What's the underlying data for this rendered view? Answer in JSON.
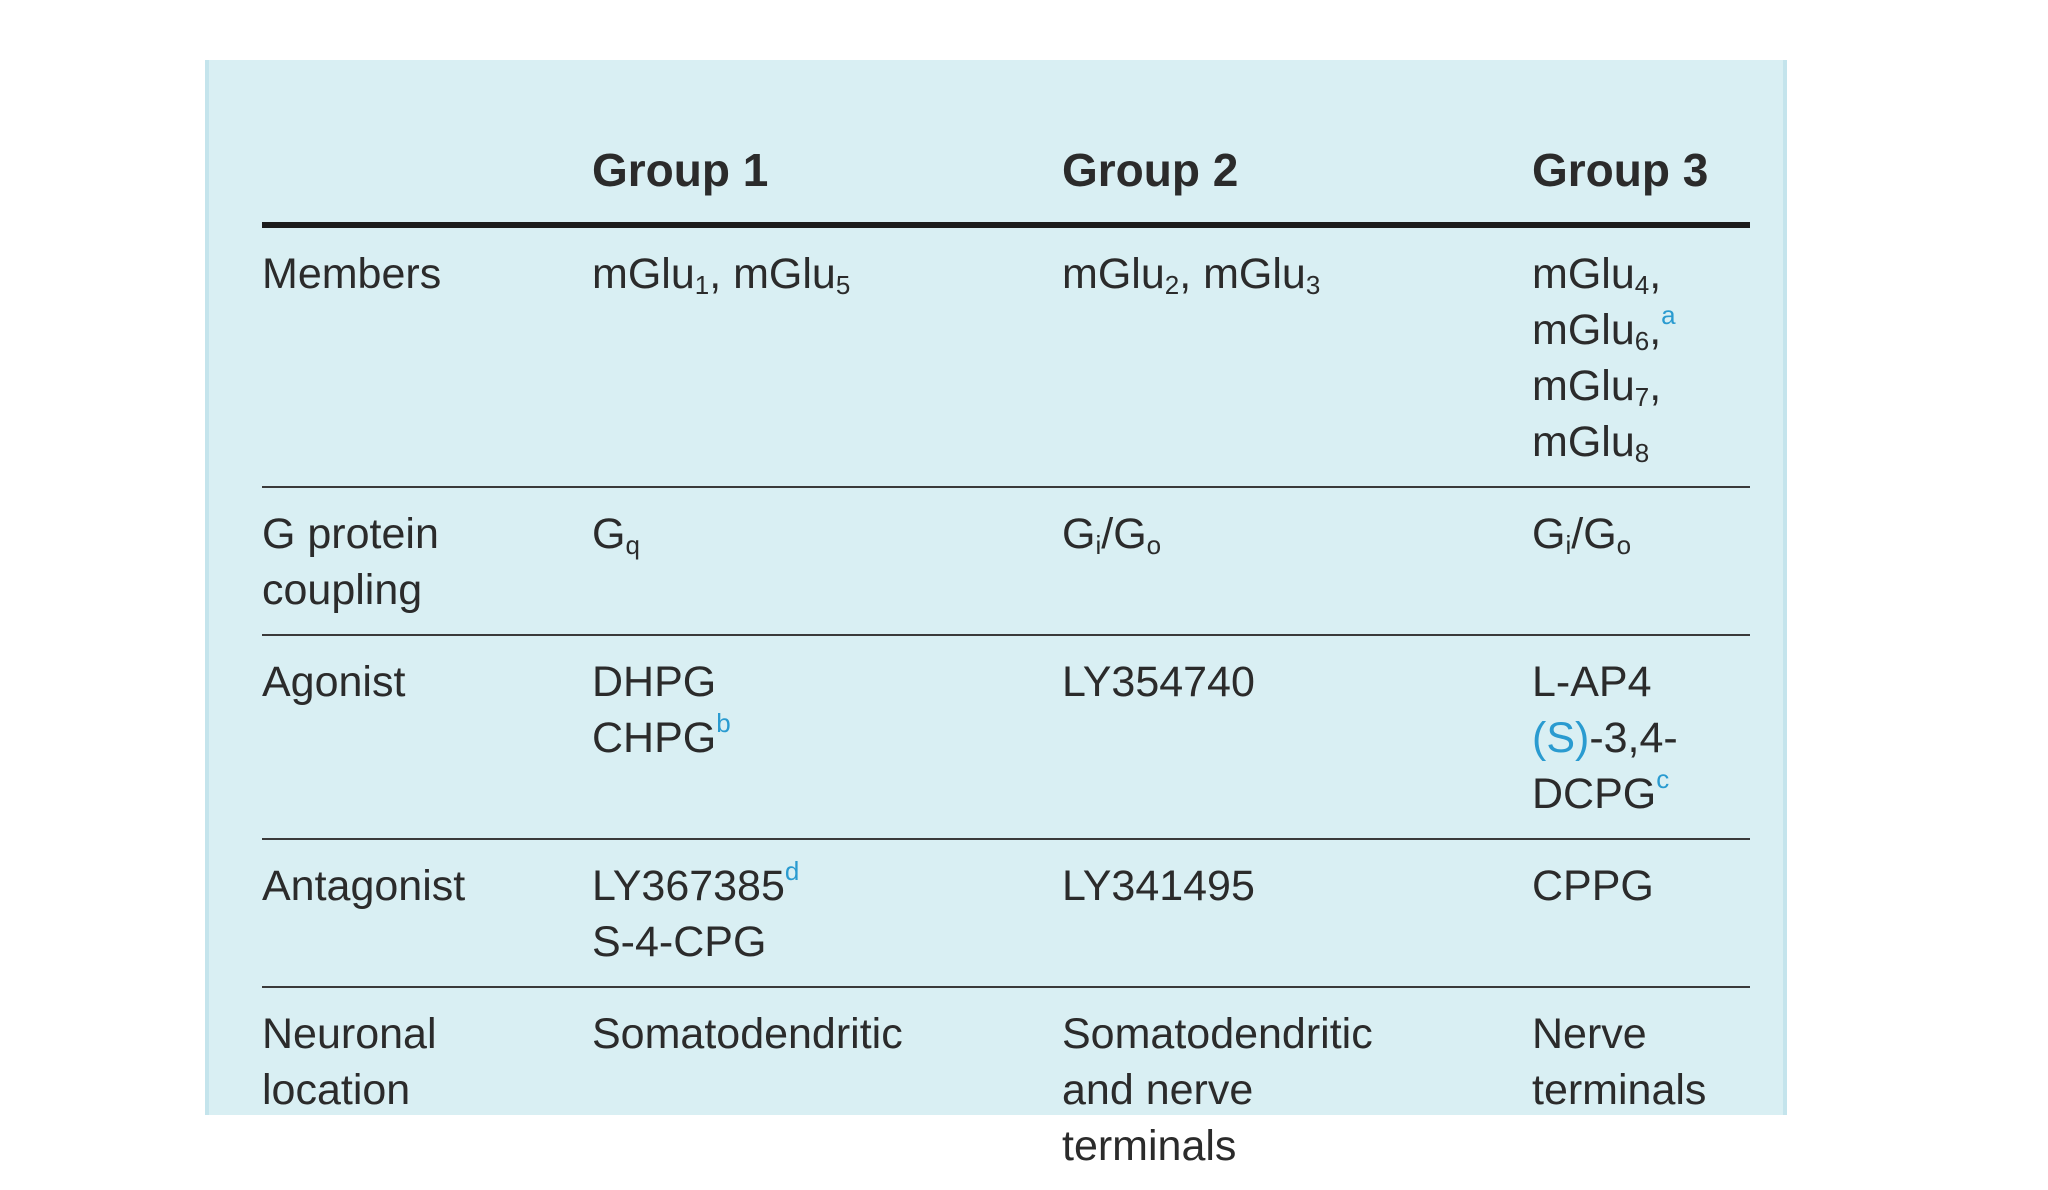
{
  "table": {
    "headers": [
      "",
      "Group 1",
      "Group 2",
      "Group 3"
    ],
    "rows": [
      {
        "label": "Members",
        "group1": "mGlu1, mGlu5",
        "group2": "mGlu2, mGlu3",
        "group3": [
          "mGlu4,",
          "mGlu6,",
          "mGlu7,",
          "mGlu8"
        ],
        "group3_note": "a"
      },
      {
        "label": [
          "G protein",
          "coupling"
        ],
        "group1": "Gq",
        "group2": "Gi/Go",
        "group3": "Gi/Go"
      },
      {
        "label": "Agonist",
        "group1": [
          "DHPG",
          "CHPG"
        ],
        "group1_note": "b",
        "group2": "LY354740",
        "group3": [
          "L-AP4",
          "(S)-3,4-",
          "DCPG"
        ],
        "group3_note": "c"
      },
      {
        "label": "Antagonist",
        "group1": [
          "LY367385",
          "S-4-CPG"
        ],
        "group1_note": "d",
        "group2": "LY341495",
        "group3": "CPPG"
      },
      {
        "label": [
          "Neuronal",
          "location"
        ],
        "group1": "Somatodendritic",
        "group2": [
          "Somatodendritic",
          "and nerve",
          "terminals"
        ],
        "group3": [
          "Nerve",
          "terminals"
        ]
      }
    ]
  }
}
